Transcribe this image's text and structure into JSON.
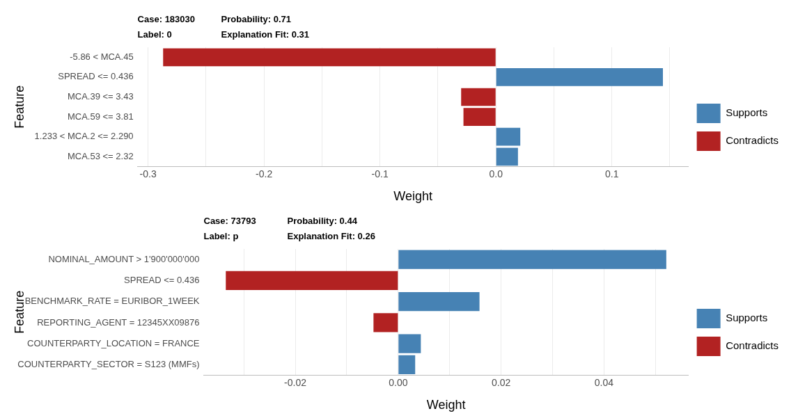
{
  "chart_data": [
    {
      "type": "bar",
      "orientation": "horizontal",
      "stacked": true,
      "annotations": [
        "Case: 183030",
        "Probability: 0.71",
        "Label: 0",
        "Explanation Fit: 0.31"
      ],
      "categories": [
        "-5.86 < MCA.45",
        "SPREAD <= 0.436",
        "MCA.39 <= 3.43",
        "MCA.59 <= 3.81",
        "1.233 < MCA.2 <= 2.290",
        "MCA.53 <= 2.32"
      ],
      "series": [
        {
          "name": "Supports",
          "color": "#4682b4",
          "values": [
            null,
            0.144,
            null,
            null,
            0.021,
            0.019
          ]
        },
        {
          "name": "Contradicts",
          "color": "#b22222",
          "values": [
            -0.287,
            null,
            -0.03,
            -0.028,
            null,
            null
          ]
        }
      ],
      "xlabel": "Weight",
      "ylabel": "Feature",
      "xlim": [
        -0.309,
        0.166
      ],
      "xticks": [
        -0.3,
        {
          "value": -0.25,
          "label": null
        },
        -0.2,
        {
          "value": -0.15,
          "label": null
        },
        -0.1,
        {
          "value": -0.05,
          "label": null
        },
        {
          "value": 0,
          "label": "0.0"
        },
        {
          "value": 0.05,
          "label": null
        },
        0.1,
        {
          "value": 0.15,
          "label": null
        }
      ],
      "grid": "x",
      "legend": "right"
    },
    {
      "type": "bar",
      "orientation": "horizontal",
      "stacked": true,
      "annotations": [
        "Case: 73793",
        "Probability: 0.44",
        "Label: p",
        "Explanation Fit: 0.26"
      ],
      "categories": [
        "NOMINAL_AMOUNT > 1'900'000'000",
        "SPREAD <= 0.436",
        "BENCHMARK_RATE = EURIBOR_1WEEK",
        "REPORTING_AGENT = 12345XX09876",
        "COUNTERPARTY_LOCATION = FRANCE",
        "COUNTERPARTY_SECTOR = S123 (MMFs)"
      ],
      "series": [
        {
          "name": "Supports",
          "color": "#4682b4",
          "values": [
            0.0521,
            null,
            0.0158,
            null,
            0.0044,
            0.0033
          ]
        },
        {
          "name": "Contradicts",
          "color": "#b22222",
          "values": [
            null,
            -0.0335,
            null,
            -0.0048,
            null,
            null
          ]
        }
      ],
      "xlabel": "Weight",
      "ylabel": "Feature",
      "xlim": [
        -0.0378,
        0.0564
      ],
      "xticks": [
        {
          "value": -0.03,
          "label": null
        },
        {
          "value": -0.02,
          "label": "-0.02"
        },
        {
          "value": -0.01,
          "label": null
        },
        {
          "value": 0,
          "label": "0.00"
        },
        {
          "value": 0.01,
          "label": null
        },
        {
          "value": 0.02,
          "label": "0.02"
        },
        {
          "value": 0.03,
          "label": null
        },
        {
          "value": 0.04,
          "label": "0.04"
        },
        {
          "value": 0.05,
          "label": null
        }
      ],
      "grid": "x",
      "legend": "right"
    }
  ]
}
